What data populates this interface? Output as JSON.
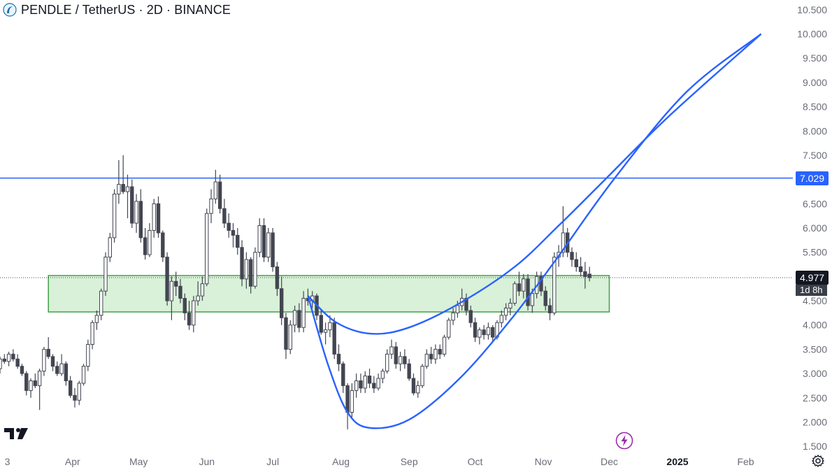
{
  "header": {
    "symbol_title": "PENDLE / TetherUS · 2D · BINANCE"
  },
  "colors": {
    "up_candle": "#ffffff",
    "down_candle": "#434651",
    "wick": "#434651",
    "trend_line": "#2962ff",
    "zone_fill": "#c8ebc8",
    "zone_border": "#43a047",
    "axis_text": "#6a6d78",
    "background": "#ffffff"
  },
  "price_axis": {
    "ticks": [
      "1.500",
      "2.000",
      "2.500",
      "3.000",
      "3.500",
      "4.000",
      "4.500",
      "5.000",
      "5.500",
      "6.000",
      "6.500",
      "7.000",
      "7.500",
      "8.000",
      "8.500",
      "9.000",
      "9.500",
      "10.000",
      "10.500"
    ],
    "last_price_label": "4.977",
    "countdown_label": "1d 8h",
    "line_label": "7.029"
  },
  "time_axis": {
    "labels": [
      "3",
      "Apr",
      "May",
      "Jun",
      "Jul",
      "Aug",
      "Sep",
      "Oct",
      "Nov",
      "Dec",
      "2025",
      "Feb"
    ]
  },
  "icons": {
    "brand_logo": "tradingview-logo-icon",
    "symbol_logo": "pendle-coin-icon",
    "bolt": "lightning-bolt-icon",
    "settings": "gear-icon"
  },
  "chart_data": {
    "type": "candlestick",
    "title": "PENDLE / TetherUS · 2D · BINANCE",
    "y_range": [
      1.3,
      10.7
    ],
    "x_range": [
      "2024-02-28",
      "2025-02-18"
    ],
    "horizontal_line": {
      "price": 7.029
    },
    "support_zone": {
      "from": "2024-03-21",
      "to": "2024-12-01",
      "low": 4.27,
      "high": 5.02
    },
    "last_price": 4.977,
    "cup_curves": [
      {
        "name": "outer",
        "points": [
          [
            "2024-07-17",
            4.6
          ],
          [
            "2024-07-26",
            3.2
          ],
          [
            "2024-08-04",
            2.2
          ],
          [
            "2024-08-14",
            1.88
          ],
          [
            "2024-09-01",
            2.05
          ],
          [
            "2024-09-24",
            2.9
          ],
          [
            "2024-10-17",
            4.1
          ],
          [
            "2024-11-06",
            5.3
          ],
          [
            "2024-12-03",
            7.0
          ],
          [
            "2025-01-05",
            8.8
          ],
          [
            "2025-02-08",
            10.0
          ]
        ]
      },
      {
        "name": "inner",
        "points": [
          [
            "2024-07-17",
            4.6
          ],
          [
            "2024-07-30",
            4.05
          ],
          [
            "2024-08-15",
            3.82
          ],
          [
            "2024-09-01",
            3.95
          ],
          [
            "2024-09-24",
            4.45
          ],
          [
            "2024-10-19",
            5.2
          ],
          [
            "2024-11-08",
            6.05
          ],
          [
            "2024-11-28",
            6.95
          ],
          [
            "2024-12-28",
            8.3
          ],
          [
            "2025-02-08",
            10.0
          ]
        ]
      }
    ],
    "candles": [
      [
        "2024-02-28",
        3.1,
        3.35,
        3.0,
        3.3
      ],
      [
        "2024-03-01",
        3.3,
        3.4,
        3.2,
        3.25
      ],
      [
        "2024-03-03",
        3.25,
        3.45,
        3.15,
        3.4
      ],
      [
        "2024-03-05",
        3.4,
        3.5,
        3.25,
        3.3
      ],
      [
        "2024-03-07",
        3.3,
        3.4,
        3.1,
        3.15
      ],
      [
        "2024-03-09",
        3.15,
        3.2,
        2.95,
        3.0
      ],
      [
        "2024-03-11",
        3.0,
        3.05,
        2.55,
        2.65
      ],
      [
        "2024-03-13",
        2.65,
        2.9,
        2.5,
        2.85
      ],
      [
        "2024-03-15",
        2.85,
        3.0,
        2.7,
        2.75
      ],
      [
        "2024-03-17",
        2.75,
        3.1,
        2.25,
        3.05
      ],
      [
        "2024-03-19",
        3.05,
        3.55,
        2.95,
        3.5
      ],
      [
        "2024-03-21",
        3.5,
        3.75,
        3.3,
        3.35
      ],
      [
        "2024-03-23",
        3.35,
        3.4,
        3.05,
        3.15
      ],
      [
        "2024-03-25",
        3.15,
        3.25,
        2.95,
        3.0
      ],
      [
        "2024-03-27",
        3.0,
        3.4,
        2.95,
        3.2
      ],
      [
        "2024-03-29",
        3.2,
        3.25,
        2.75,
        2.85
      ],
      [
        "2024-03-31",
        2.85,
        2.95,
        2.5,
        2.55
      ],
      [
        "2024-04-02",
        2.55,
        2.7,
        2.3,
        2.45
      ],
      [
        "2024-04-04",
        2.45,
        2.85,
        2.35,
        2.8
      ],
      [
        "2024-04-06",
        2.8,
        3.2,
        2.75,
        3.15
      ],
      [
        "2024-04-08",
        3.15,
        3.7,
        3.05,
        3.6
      ],
      [
        "2024-04-10",
        3.6,
        4.1,
        3.5,
        4.05
      ],
      [
        "2024-04-12",
        4.05,
        4.3,
        3.9,
        4.2
      ],
      [
        "2024-04-14",
        4.2,
        4.75,
        4.1,
        4.7
      ],
      [
        "2024-04-16",
        4.7,
        5.5,
        4.6,
        5.4
      ],
      [
        "2024-04-18",
        5.4,
        5.9,
        5.3,
        5.8
      ],
      [
        "2024-04-20",
        5.8,
        6.8,
        5.7,
        6.7
      ],
      [
        "2024-04-22",
        6.7,
        7.4,
        6.5,
        6.9
      ],
      [
        "2024-04-24",
        6.9,
        7.5,
        6.7,
        6.75
      ],
      [
        "2024-04-26",
        6.75,
        7.1,
        6.2,
        6.85
      ],
      [
        "2024-04-28",
        6.85,
        7.0,
        6.0,
        6.1
      ],
      [
        "2024-04-30",
        6.1,
        6.7,
        5.9,
        6.55
      ],
      [
        "2024-05-02",
        6.55,
        6.8,
        5.7,
        5.8
      ],
      [
        "2024-05-04",
        5.8,
        6.0,
        5.35,
        5.45
      ],
      [
        "2024-05-06",
        5.45,
        6.1,
        5.4,
        5.95
      ],
      [
        "2024-05-08",
        5.95,
        6.6,
        5.8,
        6.5
      ],
      [
        "2024-05-10",
        6.5,
        6.65,
        5.8,
        5.9
      ],
      [
        "2024-05-12",
        5.9,
        5.95,
        5.3,
        5.4
      ],
      [
        "2024-05-14",
        5.4,
        5.5,
        4.4,
        4.5
      ],
      [
        "2024-05-16",
        4.5,
        5.0,
        4.1,
        4.9
      ],
      [
        "2024-05-18",
        4.9,
        5.1,
        4.6,
        4.8
      ],
      [
        "2024-05-20",
        4.8,
        4.95,
        4.45,
        4.55
      ],
      [
        "2024-05-22",
        4.55,
        4.65,
        4.1,
        4.25
      ],
      [
        "2024-05-24",
        4.25,
        4.5,
        3.9,
        4.0
      ],
      [
        "2024-05-26",
        4.0,
        4.6,
        3.85,
        4.5
      ],
      [
        "2024-05-28",
        4.5,
        4.9,
        4.4,
        4.6
      ],
      [
        "2024-05-30",
        4.6,
        5.0,
        4.5,
        4.85
      ],
      [
        "2024-06-01",
        4.85,
        6.4,
        4.8,
        6.3
      ],
      [
        "2024-06-03",
        6.3,
        6.8,
        6.1,
        6.6
      ],
      [
        "2024-06-05",
        6.6,
        7.2,
        6.5,
        6.95
      ],
      [
        "2024-06-07",
        6.95,
        7.1,
        6.3,
        6.4
      ],
      [
        "2024-06-09",
        6.4,
        6.6,
        6.0,
        6.1
      ],
      [
        "2024-06-11",
        6.1,
        6.3,
        5.8,
        5.95
      ],
      [
        "2024-06-13",
        5.95,
        6.1,
        5.6,
        5.85
      ],
      [
        "2024-06-15",
        5.85,
        6.0,
        5.45,
        5.6
      ],
      [
        "2024-06-17",
        5.6,
        5.75,
        4.8,
        4.95
      ],
      [
        "2024-06-19",
        4.95,
        5.5,
        4.75,
        5.35
      ],
      [
        "2024-06-21",
        5.35,
        5.4,
        4.65,
        4.8
      ],
      [
        "2024-06-23",
        4.8,
        5.6,
        4.75,
        5.5
      ],
      [
        "2024-06-25",
        5.5,
        6.2,
        5.4,
        6.05
      ],
      [
        "2024-06-27",
        6.05,
        6.2,
        5.3,
        5.4
      ],
      [
        "2024-06-29",
        5.4,
        6.0,
        5.3,
        5.9
      ],
      [
        "2024-07-01",
        5.9,
        6.0,
        5.1,
        5.2
      ],
      [
        "2024-07-03",
        5.2,
        5.3,
        4.6,
        4.75
      ],
      [
        "2024-07-05",
        4.75,
        5.0,
        4.0,
        4.15
      ],
      [
        "2024-07-07",
        4.15,
        4.25,
        3.3,
        3.5
      ],
      [
        "2024-07-09",
        3.5,
        4.1,
        3.4,
        4.0
      ],
      [
        "2024-07-11",
        4.0,
        4.4,
        3.85,
        4.3
      ],
      [
        "2024-07-13",
        4.3,
        4.45,
        3.85,
        3.95
      ],
      [
        "2024-07-15",
        3.95,
        4.7,
        3.85,
        4.55
      ],
      [
        "2024-07-17",
        4.55,
        4.75,
        4.4,
        4.5
      ],
      [
        "2024-07-19",
        4.5,
        4.7,
        4.35,
        4.6
      ],
      [
        "2024-07-21",
        4.6,
        4.65,
        4.1,
        4.2
      ],
      [
        "2024-07-23",
        4.2,
        4.3,
        3.8,
        3.85
      ],
      [
        "2024-07-25",
        3.85,
        4.05,
        3.6,
        3.9
      ],
      [
        "2024-07-27",
        3.9,
        4.2,
        3.75,
        4.05
      ],
      [
        "2024-07-29",
        4.05,
        4.15,
        3.3,
        3.4
      ],
      [
        "2024-07-31",
        3.4,
        3.6,
        3.05,
        3.2
      ],
      [
        "2024-08-02",
        3.2,
        3.25,
        2.6,
        2.75
      ],
      [
        "2024-08-04",
        2.75,
        2.8,
        1.85,
        2.2
      ],
      [
        "2024-08-06",
        2.2,
        2.8,
        2.1,
        2.65
      ],
      [
        "2024-08-08",
        2.65,
        3.0,
        2.5,
        2.85
      ],
      [
        "2024-08-10",
        2.85,
        3.0,
        2.6,
        2.7
      ],
      [
        "2024-08-12",
        2.7,
        3.05,
        2.6,
        2.95
      ],
      [
        "2024-08-14",
        2.95,
        3.1,
        2.7,
        2.8
      ],
      [
        "2024-08-16",
        2.8,
        2.95,
        2.6,
        2.7
      ],
      [
        "2024-08-18",
        2.7,
        3.0,
        2.65,
        2.9
      ],
      [
        "2024-08-20",
        2.9,
        3.1,
        2.8,
        3.05
      ],
      [
        "2024-08-22",
        3.05,
        3.5,
        3.0,
        3.4
      ],
      [
        "2024-08-24",
        3.4,
        3.7,
        3.3,
        3.55
      ],
      [
        "2024-08-26",
        3.55,
        3.65,
        3.1,
        3.2
      ],
      [
        "2024-08-28",
        3.2,
        3.45,
        3.05,
        3.35
      ],
      [
        "2024-08-30",
        3.35,
        3.5,
        3.1,
        3.2
      ],
      [
        "2024-09-01",
        3.2,
        3.3,
        2.85,
        2.9
      ],
      [
        "2024-09-03",
        2.9,
        3.0,
        2.55,
        2.6
      ],
      [
        "2024-09-05",
        2.6,
        2.85,
        2.5,
        2.75
      ],
      [
        "2024-09-07",
        2.75,
        3.2,
        2.7,
        3.15
      ],
      [
        "2024-09-09",
        3.15,
        3.5,
        3.1,
        3.4
      ],
      [
        "2024-09-11",
        3.4,
        3.55,
        3.2,
        3.3
      ],
      [
        "2024-09-13",
        3.3,
        3.6,
        3.2,
        3.5
      ],
      [
        "2024-09-15",
        3.5,
        3.6,
        3.3,
        3.4
      ],
      [
        "2024-09-17",
        3.4,
        3.8,
        3.35,
        3.75
      ],
      [
        "2024-09-19",
        3.75,
        4.15,
        3.7,
        4.1
      ],
      [
        "2024-09-21",
        4.1,
        4.35,
        4.0,
        4.25
      ],
      [
        "2024-09-23",
        4.25,
        4.5,
        4.15,
        4.4
      ],
      [
        "2024-09-25",
        4.4,
        4.75,
        4.3,
        4.55
      ],
      [
        "2024-09-27",
        4.55,
        4.65,
        4.2,
        4.3
      ],
      [
        "2024-09-29",
        4.3,
        4.4,
        3.95,
        4.05
      ],
      [
        "2024-10-01",
        4.05,
        4.15,
        3.65,
        3.75
      ],
      [
        "2024-10-03",
        3.75,
        3.95,
        3.6,
        3.9
      ],
      [
        "2024-10-05",
        3.9,
        4.0,
        3.7,
        3.8
      ],
      [
        "2024-10-07",
        3.8,
        4.05,
        3.7,
        3.95
      ],
      [
        "2024-10-09",
        3.95,
        4.0,
        3.65,
        3.75
      ],
      [
        "2024-10-11",
        3.75,
        4.1,
        3.7,
        4.05
      ],
      [
        "2024-10-13",
        4.05,
        4.3,
        3.95,
        4.2
      ],
      [
        "2024-10-15",
        4.2,
        4.45,
        4.1,
        4.35
      ],
      [
        "2024-10-17",
        4.35,
        4.55,
        4.2,
        4.45
      ],
      [
        "2024-10-19",
        4.45,
        4.9,
        4.4,
        4.85
      ],
      [
        "2024-10-21",
        4.85,
        5.1,
        4.6,
        4.7
      ],
      [
        "2024-10-23",
        4.7,
        5.05,
        4.55,
        4.95
      ],
      [
        "2024-10-25",
        4.95,
        5.05,
        4.3,
        4.4
      ],
      [
        "2024-10-27",
        4.4,
        4.75,
        4.25,
        4.65
      ],
      [
        "2024-10-29",
        4.65,
        5.1,
        4.55,
        5.0
      ],
      [
        "2024-10-31",
        5.0,
        5.1,
        4.6,
        4.7
      ],
      [
        "2024-11-02",
        4.7,
        4.8,
        4.3,
        4.4
      ],
      [
        "2024-11-04",
        4.4,
        4.55,
        4.1,
        4.25
      ],
      [
        "2024-11-06",
        4.25,
        5.5,
        4.2,
        5.4
      ],
      [
        "2024-11-08",
        5.4,
        5.65,
        5.2,
        5.5
      ],
      [
        "2024-11-10",
        5.5,
        6.45,
        5.4,
        5.9
      ],
      [
        "2024-11-12",
        5.9,
        6.0,
        5.4,
        5.5
      ],
      [
        "2024-11-14",
        5.5,
        5.6,
        5.2,
        5.35
      ],
      [
        "2024-11-16",
        5.35,
        5.5,
        5.1,
        5.2
      ],
      [
        "2024-11-18",
        5.2,
        5.4,
        5.0,
        5.1
      ],
      [
        "2024-11-20",
        5.1,
        5.3,
        4.75,
        5.0
      ],
      [
        "2024-11-22",
        5.05,
        5.2,
        4.9,
        4.977
      ]
    ]
  }
}
